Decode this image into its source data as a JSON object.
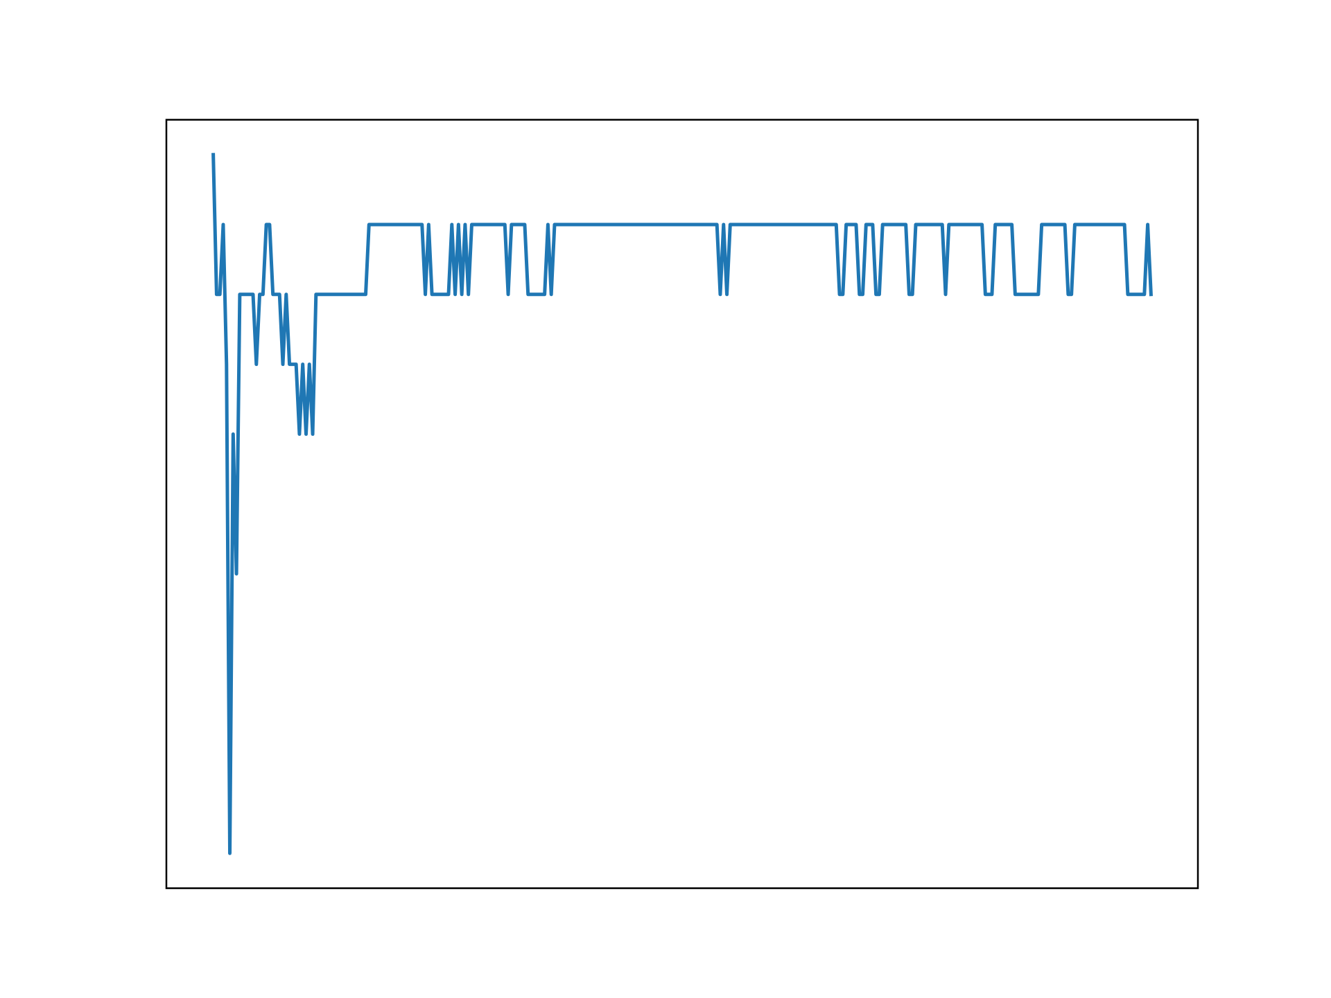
{
  "chart_data": {
    "type": "line",
    "color": "#1f77b4",
    "values": [
      10,
      8,
      8,
      9,
      7,
      0,
      6,
      4,
      8,
      8,
      8,
      8,
      8,
      7,
      8,
      8,
      9,
      9,
      8,
      8,
      8,
      7,
      8,
      7,
      7,
      7,
      6,
      7,
      6,
      7,
      6,
      8,
      8,
      8,
      8,
      8,
      8,
      8,
      8,
      8,
      8,
      8,
      8,
      8,
      8,
      8,
      8,
      9,
      9,
      9,
      9,
      9,
      9,
      9,
      9,
      9,
      9,
      9,
      9,
      9,
      9,
      9,
      9,
      9,
      8,
      9,
      8,
      8,
      8,
      8,
      8,
      8,
      9,
      8,
      9,
      8,
      9,
      8,
      9,
      9,
      9,
      9,
      9,
      9,
      9,
      9,
      9,
      9,
      9,
      8,
      9,
      9,
      9,
      9,
      9,
      8,
      8,
      8,
      8,
      8,
      8,
      9,
      8,
      9,
      9,
      9,
      9,
      9,
      9,
      9,
      9,
      9,
      9,
      9,
      9,
      9,
      9,
      9,
      9,
      9,
      9,
      9,
      9,
      9,
      9,
      9,
      9,
      9,
      9,
      9,
      9,
      9,
      9,
      9,
      9,
      9,
      9,
      9,
      9,
      9,
      9,
      9,
      9,
      9,
      9,
      9,
      9,
      9,
      9,
      9,
      9,
      9,
      9,
      8,
      9,
      8,
      9,
      9,
      9,
      9,
      9,
      9,
      9,
      9,
      9,
      9,
      9,
      9,
      9,
      9,
      9,
      9,
      9,
      9,
      9,
      9,
      9,
      9,
      9,
      9,
      9,
      9,
      9,
      9,
      9,
      9,
      9,
      9,
      9,
      8,
      8,
      9,
      9,
      9,
      9,
      8,
      8,
      9,
      9,
      9,
      8,
      8,
      9,
      9,
      9,
      9,
      9,
      9,
      9,
      9,
      8,
      8,
      9,
      9,
      9,
      9,
      9,
      9,
      9,
      9,
      9,
      8,
      9,
      9,
      9,
      9,
      9,
      9,
      9,
      9,
      9,
      9,
      9,
      8,
      8,
      8,
      9,
      9,
      9,
      9,
      9,
      9,
      8,
      8,
      8,
      8,
      8,
      8,
      8,
      8,
      9,
      9,
      9,
      9,
      9,
      9,
      9,
      9,
      8,
      8,
      9,
      9,
      9,
      9,
      9,
      9,
      9,
      9,
      9,
      9,
      9,
      9,
      9,
      9,
      9,
      9,
      8,
      8,
      8,
      8,
      8,
      8,
      9,
      8
    ],
    "xlim": [
      -14.15,
      297.15
    ],
    "ylim": [
      -0.5,
      10.5
    ]
  }
}
